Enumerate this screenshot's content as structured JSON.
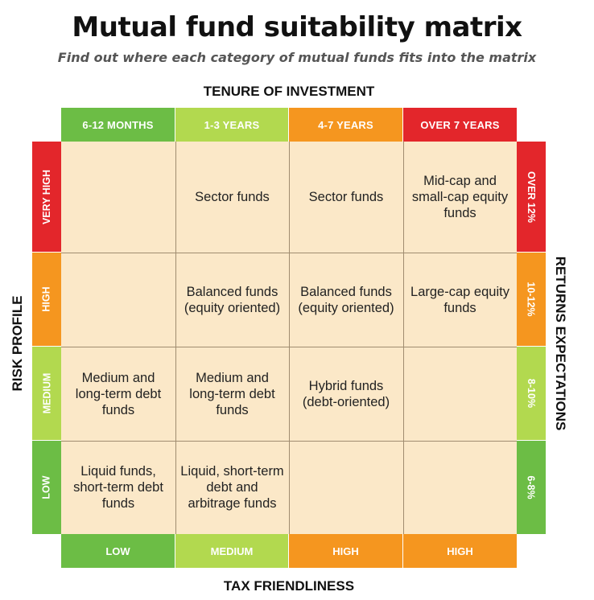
{
  "title": "Mutual fund suitability matrix",
  "subtitle": "Find out where each category of mutual funds fits into the matrix",
  "axes": {
    "top": "TENURE OF INVESTMENT",
    "bottom": "TAX FRIENDLINESS",
    "left": "RISK PROFILE",
    "right": "RETURNS EXPECTATIONS"
  },
  "colors": {
    "green": "#6cbd45",
    "light_green": "#b2d94f",
    "orange": "#f5961f",
    "red": "#e3262b",
    "cell_bg": "#fbe8c8"
  },
  "tenure": [
    "6-12 MONTHS",
    "1-3 YEARS",
    "4-7 YEARS",
    "OVER 7 YEARS"
  ],
  "risk": [
    "VERY HIGH",
    "HIGH",
    "MEDIUM",
    "LOW"
  ],
  "returns": [
    "OVER 12%",
    "10-12%",
    "8-10%",
    "6-8%"
  ],
  "tax": [
    "LOW",
    "MEDIUM",
    "HIGH",
    "HIGH"
  ],
  "cells": [
    [
      "",
      "Sector funds",
      "Sector funds",
      "Mid-cap and small-cap equity funds"
    ],
    [
      "",
      "Balanced funds (equity oriented)",
      "Balanced funds (equity oriented)",
      "Large-cap equity funds"
    ],
    [
      "Medium and long-term debt funds",
      "Medium and long-term debt funds",
      "Hybrid funds (debt-oriented)",
      ""
    ],
    [
      "Liquid funds, short-term debt funds",
      "Liquid, short-term debt and arbitrage funds",
      "",
      ""
    ]
  ]
}
